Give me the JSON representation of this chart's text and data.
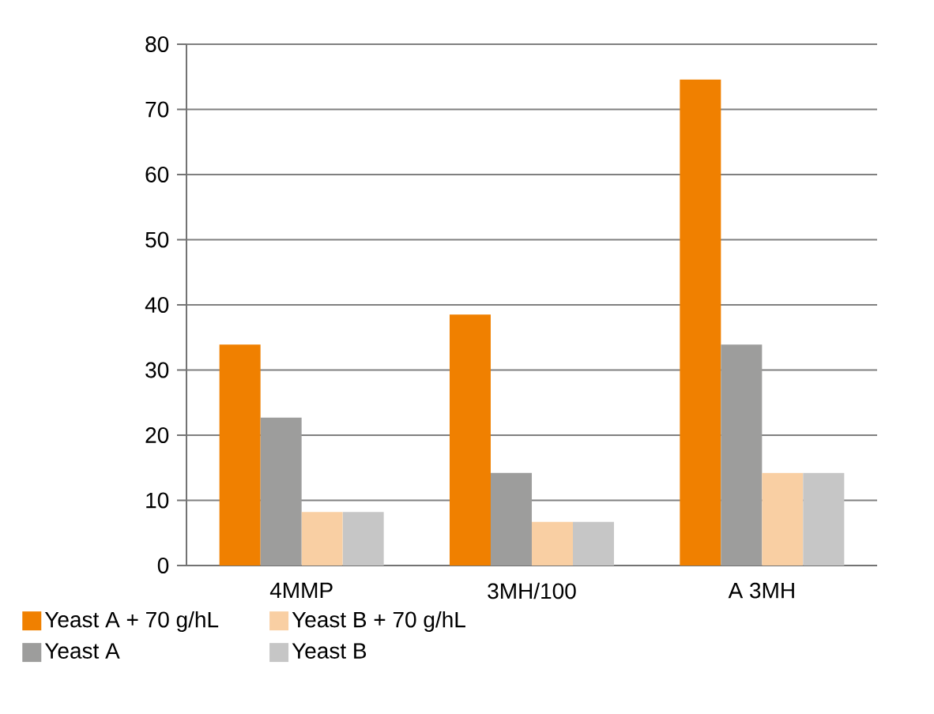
{
  "chart_data": {
    "type": "bar",
    "categories": [
      "4MMP",
      "3MH/100",
      "A 3MH"
    ],
    "series": [
      {
        "name": "Yeast A + 70 g/hL",
        "color": "#f08000",
        "values": [
          33.9,
          38.5,
          74.6
        ]
      },
      {
        "name": "Yeast A",
        "color": "#9d9d9c",
        "values": [
          22.7,
          14.2,
          33.9
        ]
      },
      {
        "name": "Yeast B + 70 g/hL",
        "color": "#f9cfa3",
        "values": [
          8.2,
          6.7,
          14.2
        ]
      },
      {
        "name": "Yeast B",
        "color": "#c6c6c6",
        "values": [
          8.2,
          6.7,
          14.2
        ]
      }
    ],
    "ylim": [
      0,
      80
    ],
    "yticks": [
      0,
      10,
      20,
      30,
      40,
      50,
      60,
      70,
      80
    ],
    "grid": "y",
    "legend": "bottom"
  }
}
